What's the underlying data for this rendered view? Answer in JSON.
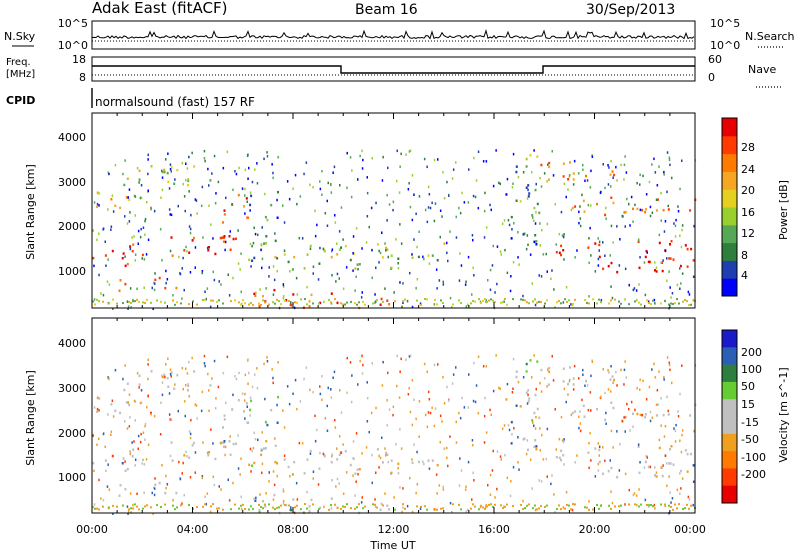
{
  "header": {
    "station": "Adak East (fitACF)",
    "beam": "Beam 16",
    "date": "30/Sep/2013"
  },
  "top_panel": {
    "left_label": "N.Sky",
    "right_label": "N.Search",
    "y_ticks_left": [
      "10^5",
      "10^0"
    ],
    "y_ticks_right": [
      "10^5",
      "10^0"
    ]
  },
  "freq_panel": {
    "left_label_line1": "Freq.",
    "left_label_line2": "[MHz]",
    "right_label": "Nave",
    "y_ticks_left": [
      "18",
      "8"
    ],
    "y_ticks_right": [
      "60",
      "0"
    ]
  },
  "cpid": {
    "label": "CPID",
    "text": "normalsound (fast) 157 RF"
  },
  "colors": {
    "power_scale": [
      "#0000ff",
      "#1f3fb0",
      "#2e7f3e",
      "#56a857",
      "#9ad02e",
      "#e5d020",
      "#f5a623",
      "#ff7a00",
      "#ff3b00",
      "#e60000"
    ],
    "velocity_scale": [
      "#1a1ac8",
      "#2a5fb5",
      "#2e7f3e",
      "#66cc33",
      "#c0c0c0",
      "#c0c0c0",
      "#f0a020",
      "#ff7a00",
      "#ff3b00",
      "#e60000"
    ],
    "gray": "#c0c0c0"
  },
  "chart_data": [
    {
      "type": "heatmap",
      "title": "Power",
      "ylabel": "Slant Range [km]",
      "xlabel": "",
      "x_range": [
        "00:00",
        "00:00"
      ],
      "ylim": [
        180,
        4500
      ],
      "y_ticks": [
        1000,
        2000,
        3000,
        4000
      ],
      "x_ticks": [
        "00:00",
        "04:00",
        "08:00",
        "12:00",
        "16:00",
        "20:00",
        "00:00"
      ],
      "colorbar_label": "Power [dB]",
      "colorbar_ticks": [
        "4",
        "8",
        "12",
        "16",
        "20",
        "24",
        "28"
      ]
    },
    {
      "type": "heatmap",
      "title": "Velocity",
      "ylabel": "Slant Range [km]",
      "xlabel": "Time UT",
      "x_range": [
        "00:00",
        "00:00"
      ],
      "ylim": [
        180,
        4500
      ],
      "y_ticks": [
        1000,
        2000,
        3000,
        4000
      ],
      "x_ticks": [
        "00:00",
        "04:00",
        "08:00",
        "12:00",
        "16:00",
        "20:00",
        "00:00"
      ],
      "colorbar_label": "Velocity [m s^-1]",
      "colorbar_ticks": [
        "200",
        "100",
        "50",
        "15",
        "-15",
        "-50",
        "-100",
        "-200"
      ]
    }
  ]
}
